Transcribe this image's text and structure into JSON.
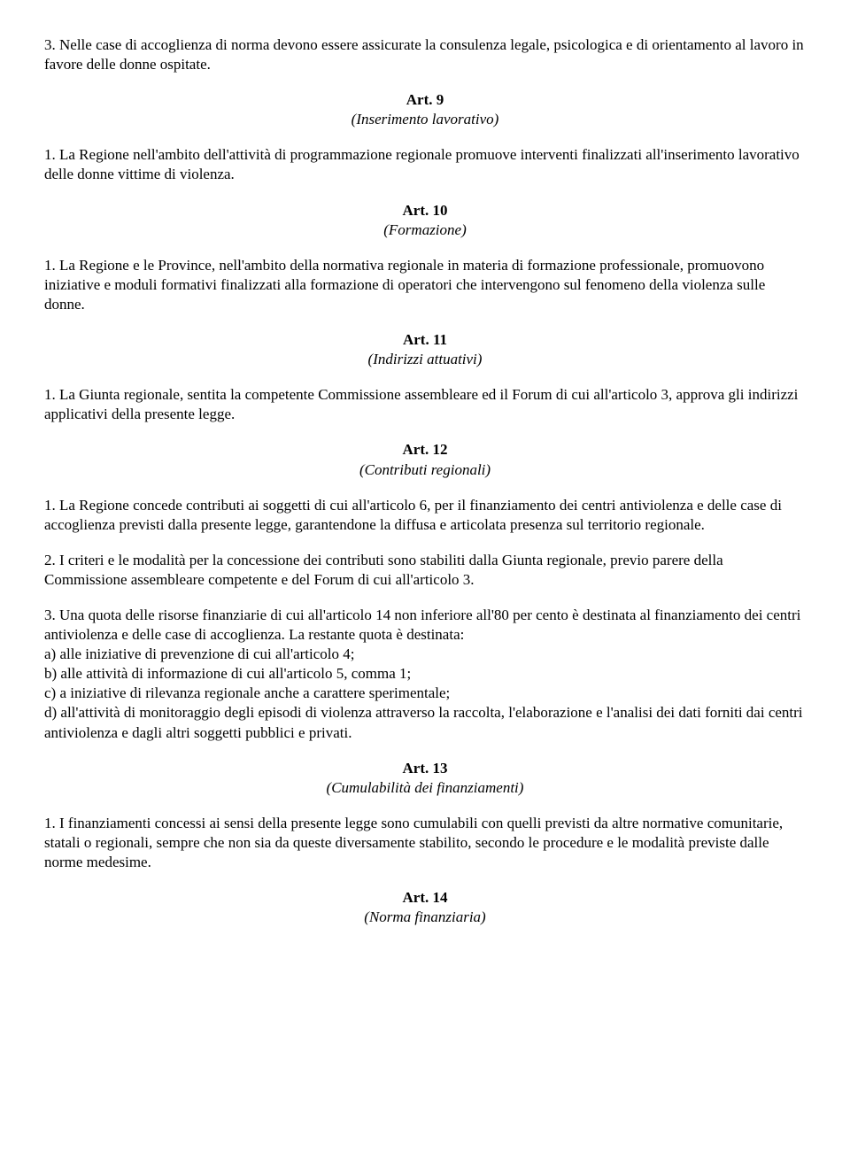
{
  "art8_p3": "3. Nelle case di accoglienza di norma devono essere assicurate la consulenza legale, psicologica e di orientamento al lavoro in favore delle donne ospitate.",
  "art9": {
    "num": "Art. 9",
    "title": "(Inserimento lavorativo)",
    "p1": "1. La Regione nell'ambito dell'attività di programmazione regionale promuove interventi finalizzati all'inserimento lavorativo delle donne vittime di violenza."
  },
  "art10": {
    "num": "Art. 10",
    "title": "(Formazione)",
    "p1": "1. La Regione e le Province, nell'ambito della normativa regionale in materia di formazione professionale, promuovono iniziative e moduli formativi finalizzati alla formazione di operatori che intervengono sul fenomeno della violenza sulle donne."
  },
  "art11": {
    "num": "Art. 11",
    "title": "(Indirizzi attuativi)",
    "p1": "1. La Giunta regionale, sentita la competente Commissione assembleare ed il Forum di cui all'articolo 3, approva gli indirizzi applicativi della presente legge."
  },
  "art12": {
    "num": "Art. 12",
    "title": "(Contributi regionali)",
    "p1": "1. La Regione concede contributi ai soggetti di cui all'articolo 6, per il finanziamento dei centri antiviolenza e delle case di accoglienza previsti dalla presente legge, garantendone la diffusa e articolata presenza sul territorio regionale.",
    "p2": "2. I criteri e le modalità per la concessione dei contributi sono stabiliti dalla Giunta regionale, previo parere della Commissione assembleare competente e del Forum di cui all'articolo 3.",
    "p3_intro": "3. Una quota delle risorse finanziarie di cui all'articolo 14 non inferiore all'80 per cento è destinata al finanziamento dei centri antiviolenza e delle case di accoglienza. La restante quota è destinata:",
    "p3_a": "a) alle iniziative di prevenzione di cui all'articolo 4;",
    "p3_b": "b) alle attività di informazione di cui all'articolo 5, comma 1;",
    "p3_c": "c) a iniziative di rilevanza regionale anche a carattere sperimentale;",
    "p3_d": "d) all'attività di monitoraggio degli episodi di violenza attraverso la raccolta, l'elaborazione e l'analisi dei dati forniti dai centri antiviolenza e dagli altri soggetti pubblici e privati."
  },
  "art13": {
    "num": "Art. 13",
    "title": "(Cumulabilità dei finanziamenti)",
    "p1": "1. I finanziamenti concessi ai sensi della presente legge sono cumulabili con quelli previsti da altre normative comunitarie, statali o regionali, sempre che non sia da queste diversamente stabilito, secondo le procedure e le modalità previste dalle norme medesime."
  },
  "art14": {
    "num": "Art. 14",
    "title": "(Norma finanziaria)"
  }
}
